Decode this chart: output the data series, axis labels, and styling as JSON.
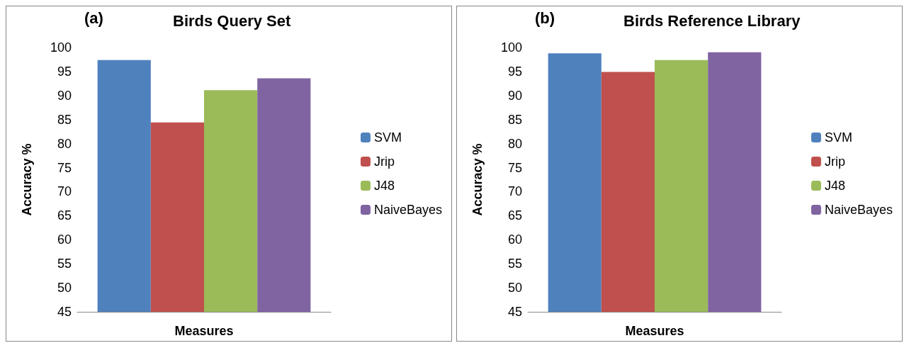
{
  "chart_data": [
    {
      "type": "bar",
      "title": "Birds Query Set",
      "annotations": [
        "(a)"
      ],
      "xlabel": "Measures",
      "ylabel": "Accuracy %",
      "categories": [
        null
      ],
      "series": [
        {
          "name": "SVM",
          "color": "#4f81bd",
          "values": [
            97.4
          ]
        },
        {
          "name": "Jrip",
          "color": "#c0504d",
          "values": [
            84.4
          ]
        },
        {
          "name": "J48",
          "color": "#9bbb59",
          "values": [
            91.1
          ]
        },
        {
          "name": "NaiveBayes",
          "color": "#8064a2",
          "values": [
            93.6
          ]
        }
      ],
      "ylim": [
        45,
        100
      ],
      "yticks": [
        45,
        50,
        55,
        60,
        65,
        70,
        75,
        80,
        85,
        90,
        95,
        100
      ],
      "tick_labels": "y",
      "legend": "right",
      "grid": false
    },
    {
      "type": "bar",
      "title": "Birds Reference Library",
      "annotations": [
        "(b)"
      ],
      "xlabel": "Measures",
      "ylabel": "Accuracy %",
      "categories": [
        null
      ],
      "series": [
        {
          "name": "SVM",
          "color": "#4f81bd",
          "values": [
            98.8
          ]
        },
        {
          "name": "Jrip",
          "color": "#c0504d",
          "values": [
            94.9
          ]
        },
        {
          "name": "J48",
          "color": "#9bbb59",
          "values": [
            97.4
          ]
        },
        {
          "name": "NaiveBayes",
          "color": "#8064a2",
          "values": [
            99.0
          ]
        }
      ],
      "ylim": [
        45,
        100
      ],
      "yticks": [
        45,
        50,
        55,
        60,
        65,
        70,
        75,
        80,
        85,
        90,
        95,
        100
      ],
      "tick_labels": "y",
      "legend": "right",
      "grid": false
    }
  ]
}
